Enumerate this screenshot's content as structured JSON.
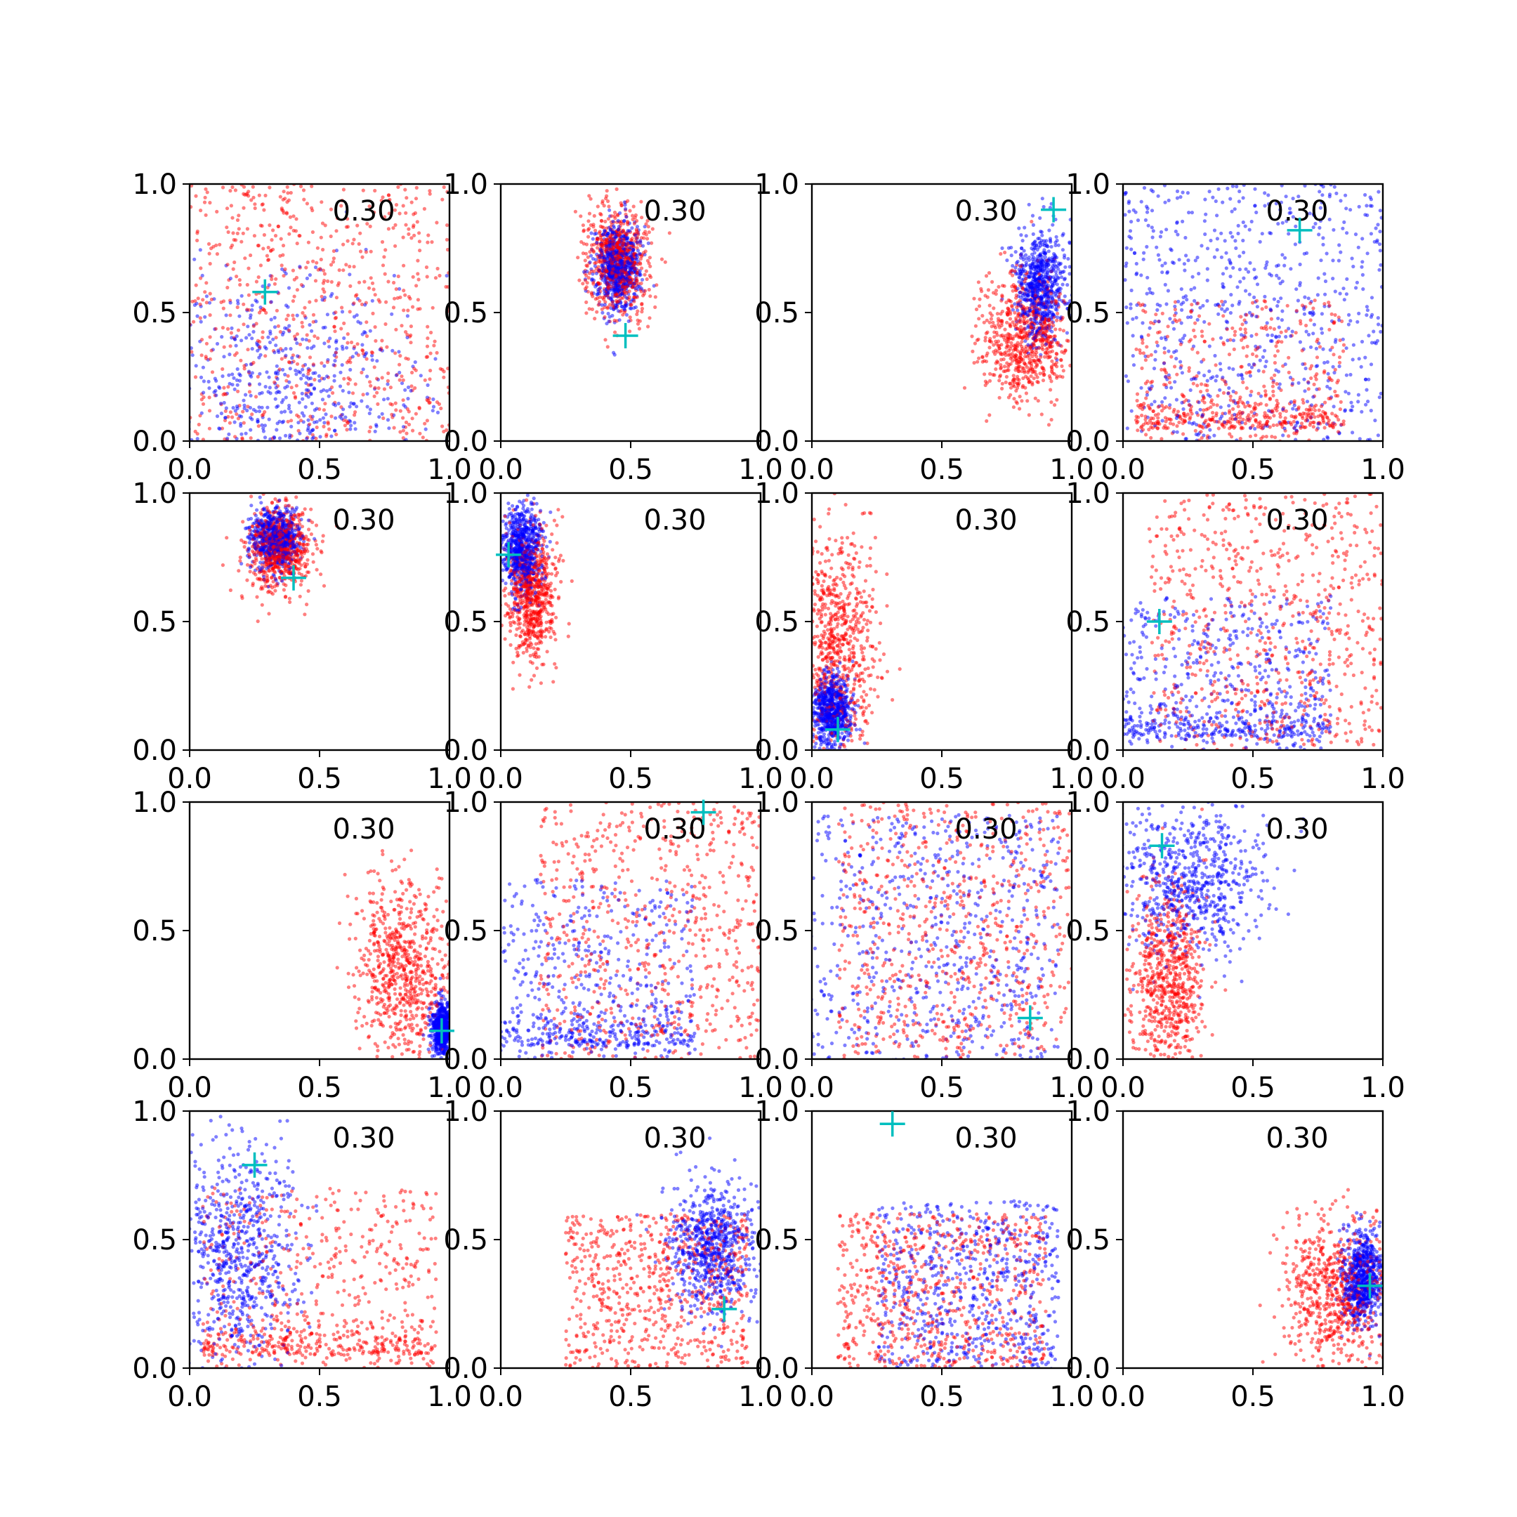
{
  "figure": {
    "background": "#ffffff",
    "rows": 4,
    "cols": 4,
    "marker_colors": {
      "series_a": "#0000ff",
      "series_b": "#ff0000",
      "center_marker": "#00bfbf"
    },
    "center_marker_shape": "plus"
  },
  "chart_data": [
    {
      "type": "scatter",
      "annotation": "0.30",
      "xlim": [
        0,
        1
      ],
      "ylim": [
        0,
        1
      ],
      "xticks": [
        "0.0",
        "0.5",
        "1.0"
      ],
      "yticks": [
        "0.0",
        "0.5",
        "1.0"
      ],
      "series": [
        {
          "color": "#0000ff",
          "distribution": "spread with dense band near y=0",
          "center": [
            0.4,
            0.15
          ],
          "spread": [
            0.45,
            0.4
          ]
        },
        {
          "color": "#ff0000",
          "distribution": "broad uniform",
          "center": [
            0.5,
            0.5
          ],
          "spread": [
            0.5,
            0.5
          ]
        }
      ],
      "marker": {
        "x": 0.29,
        "y": 0.58
      }
    },
    {
      "type": "scatter",
      "annotation": "0.30",
      "xlim": [
        0,
        1
      ],
      "ylim": [
        0,
        1
      ],
      "xticks": [
        "0.0",
        "0.5",
        "1.0"
      ],
      "yticks": [
        "0.0",
        "0.5",
        "1.0"
      ],
      "series": [
        {
          "color": "#0000ff",
          "distribution": "elongated cluster",
          "center": [
            0.45,
            0.68
          ],
          "spread": [
            0.07,
            0.14
          ]
        },
        {
          "color": "#ff0000",
          "distribution": "elongated cluster",
          "center": [
            0.45,
            0.7
          ],
          "spread": [
            0.1,
            0.18
          ]
        }
      ],
      "marker": {
        "x": 0.48,
        "y": 0.41
      }
    },
    {
      "type": "scatter",
      "annotation": "0.30",
      "xlim": [
        0,
        1
      ],
      "ylim": [
        0,
        1
      ],
      "xticks": [
        "0.0",
        "0.5",
        "1.0"
      ],
      "yticks": [
        "0.0",
        "0.5",
        "1.0"
      ],
      "series": [
        {
          "color": "#0000ff",
          "distribution": "cluster at right edge",
          "center": [
            0.88,
            0.6
          ],
          "spread": [
            0.08,
            0.18
          ]
        },
        {
          "color": "#ff0000",
          "distribution": "diffuse cluster",
          "center": [
            0.82,
            0.4
          ],
          "spread": [
            0.14,
            0.2
          ]
        }
      ],
      "marker": {
        "x": 0.93,
        "y": 0.9
      }
    },
    {
      "type": "scatter",
      "annotation": "0.30",
      "xlim": [
        0,
        1
      ],
      "ylim": [
        0,
        1
      ],
      "xticks": [
        "0.0",
        "0.5",
        "1.0"
      ],
      "yticks": [
        "0.0",
        "0.5",
        "1.0"
      ],
      "series": [
        {
          "color": "#0000ff",
          "distribution": "broad uniform",
          "center": [
            0.5,
            0.5
          ],
          "spread": [
            0.5,
            0.5
          ]
        },
        {
          "color": "#ff0000",
          "distribution": "broad with dense band near y=0.1",
          "center": [
            0.45,
            0.2
          ],
          "spread": [
            0.4,
            0.35
          ]
        }
      ],
      "marker": {
        "x": 0.68,
        "y": 0.82
      }
    },
    {
      "type": "scatter",
      "annotation": "0.30",
      "xlim": [
        0,
        1
      ],
      "ylim": [
        0,
        1
      ],
      "xticks": [
        "0.0",
        "0.5",
        "1.0"
      ],
      "yticks": [
        "0.0",
        "0.5",
        "1.0"
      ],
      "series": [
        {
          "color": "#0000ff",
          "distribution": "elongated cluster",
          "center": [
            0.33,
            0.82
          ],
          "spread": [
            0.08,
            0.1
          ]
        },
        {
          "color": "#ff0000",
          "distribution": "elongated cluster",
          "center": [
            0.35,
            0.78
          ],
          "spread": [
            0.1,
            0.14
          ]
        }
      ],
      "marker": {
        "x": 0.4,
        "y": 0.67
      }
    },
    {
      "type": "scatter",
      "annotation": "0.30",
      "xlim": [
        0,
        1
      ],
      "ylim": [
        0,
        1
      ],
      "xticks": [
        "0.0",
        "0.5",
        "1.0"
      ],
      "yticks": [
        "0.0",
        "0.5",
        "1.0"
      ],
      "series": [
        {
          "color": "#0000ff",
          "distribution": "cluster at left edge",
          "center": [
            0.08,
            0.78
          ],
          "spread": [
            0.06,
            0.14
          ]
        },
        {
          "color": "#ff0000",
          "distribution": "elongated cluster",
          "center": [
            0.12,
            0.6
          ],
          "spread": [
            0.08,
            0.2
          ]
        }
      ],
      "marker": {
        "x": 0.03,
        "y": 0.76
      }
    },
    {
      "type": "scatter",
      "annotation": "0.30",
      "xlim": [
        0,
        1
      ],
      "ylim": [
        0,
        1
      ],
      "xticks": [
        "0.0",
        "0.5",
        "1.0"
      ],
      "yticks": [
        "0.0",
        "0.5",
        "1.0"
      ],
      "series": [
        {
          "color": "#0000ff",
          "distribution": "cluster at lower left with sparse tail",
          "center": [
            0.08,
            0.15
          ],
          "spread": [
            0.06,
            0.12
          ]
        },
        {
          "color": "#ff0000",
          "distribution": "vertical band at left with sparse spread",
          "center": [
            0.1,
            0.4
          ],
          "spread": [
            0.12,
            0.35
          ]
        }
      ],
      "marker": {
        "x": 0.1,
        "y": 0.08
      }
    },
    {
      "type": "scatter",
      "annotation": "0.30",
      "xlim": [
        0,
        1
      ],
      "ylim": [
        0,
        1
      ],
      "xticks": [
        "0.0",
        "0.5",
        "1.0"
      ],
      "yticks": [
        "0.0",
        "0.5",
        "1.0"
      ],
      "series": [
        {
          "color": "#0000ff",
          "distribution": "broad with dense band near y=0.1",
          "center": [
            0.4,
            0.25
          ],
          "spread": [
            0.4,
            0.35
          ]
        },
        {
          "color": "#ff0000",
          "distribution": "broad uniform",
          "center": [
            0.55,
            0.5
          ],
          "spread": [
            0.45,
            0.5
          ]
        }
      ],
      "marker": {
        "x": 0.14,
        "y": 0.5
      }
    },
    {
      "type": "scatter",
      "annotation": "0.30",
      "xlim": [
        0,
        1
      ],
      "ylim": [
        0,
        1
      ],
      "xticks": [
        "0.0",
        "0.5",
        "1.0"
      ],
      "yticks": [
        "0.0",
        "0.5",
        "1.0"
      ],
      "series": [
        {
          "color": "#0000ff",
          "distribution": "tight cluster at right edge",
          "center": [
            0.97,
            0.12
          ],
          "spread": [
            0.03,
            0.08
          ]
        },
        {
          "color": "#ff0000",
          "distribution": "wedge toward right edge",
          "center": [
            0.82,
            0.35
          ],
          "spread": [
            0.15,
            0.3
          ]
        }
      ],
      "marker": {
        "x": 0.97,
        "y": 0.11
      }
    },
    {
      "type": "scatter",
      "annotation": "0.30",
      "xlim": [
        0,
        1
      ],
      "ylim": [
        0,
        1
      ],
      "xticks": [
        "0.0",
        "0.5",
        "1.0"
      ],
      "yticks": [
        "0.0",
        "0.5",
        "1.0"
      ],
      "series": [
        {
          "color": "#0000ff",
          "distribution": "broad with dense band near y=0",
          "center": [
            0.35,
            0.3
          ],
          "spread": [
            0.4,
            0.4
          ]
        },
        {
          "color": "#ff0000",
          "distribution": "broad uniform",
          "center": [
            0.6,
            0.5
          ],
          "spread": [
            0.45,
            0.5
          ]
        }
      ],
      "marker": {
        "x": 0.78,
        "y": 0.96
      }
    },
    {
      "type": "scatter",
      "annotation": "0.30",
      "xlim": [
        0,
        1
      ],
      "ylim": [
        0,
        1
      ],
      "xticks": [
        "0.0",
        "0.5",
        "1.0"
      ],
      "yticks": [
        "0.0",
        "0.5",
        "1.0"
      ],
      "series": [
        {
          "color": "#0000ff",
          "distribution": "broad uniform",
          "center": [
            0.45,
            0.45
          ],
          "spread": [
            0.5,
            0.5
          ]
        },
        {
          "color": "#ff0000",
          "distribution": "broad uniform",
          "center": [
            0.55,
            0.5
          ],
          "spread": [
            0.45,
            0.5
          ]
        }
      ],
      "marker": {
        "x": 0.84,
        "y": 0.16
      }
    },
    {
      "type": "scatter",
      "annotation": "0.30",
      "xlim": [
        0,
        1
      ],
      "ylim": [
        0,
        1
      ],
      "xticks": [
        "0.0",
        "0.5",
        "1.0"
      ],
      "yticks": [
        "0.0",
        "0.5",
        "1.0"
      ],
      "series": [
        {
          "color": "#0000ff",
          "distribution": "band at left, sparse right",
          "center": [
            0.25,
            0.7
          ],
          "spread": [
            0.25,
            0.25
          ]
        },
        {
          "color": "#ff0000",
          "distribution": "vertical band at left",
          "center": [
            0.18,
            0.3
          ],
          "spread": [
            0.12,
            0.3
          ]
        }
      ],
      "marker": {
        "x": 0.15,
        "y": 0.83
      }
    },
    {
      "type": "scatter",
      "annotation": "0.30",
      "xlim": [
        0,
        1
      ],
      "ylim": [
        0,
        1
      ],
      "xticks": [
        "0.0",
        "0.5",
        "1.0"
      ],
      "yticks": [
        "0.0",
        "0.5",
        "1.0"
      ],
      "series": [
        {
          "color": "#0000ff",
          "distribution": "band at left with cluster near bottom",
          "center": [
            0.18,
            0.45
          ],
          "spread": [
            0.2,
            0.4
          ]
        },
        {
          "color": "#ff0000",
          "distribution": "broad with dense band near y=0.1",
          "center": [
            0.5,
            0.35
          ],
          "spread": [
            0.45,
            0.35
          ]
        }
      ],
      "marker": {
        "x": 0.25,
        "y": 0.79
      }
    },
    {
      "type": "scatter",
      "annotation": "0.30",
      "xlim": [
        0,
        1
      ],
      "ylim": [
        0,
        1
      ],
      "xticks": [
        "0.0",
        "0.5",
        "1.0"
      ],
      "yticks": [
        "0.0",
        "0.5",
        "1.0"
      ],
      "series": [
        {
          "color": "#0000ff",
          "distribution": "cluster at right",
          "center": [
            0.82,
            0.48
          ],
          "spread": [
            0.14,
            0.22
          ]
        },
        {
          "color": "#ff0000",
          "distribution": "broad with emphasis lower right",
          "center": [
            0.6,
            0.3
          ],
          "spread": [
            0.35,
            0.3
          ]
        }
      ],
      "marker": {
        "x": 0.86,
        "y": 0.23
      }
    },
    {
      "type": "scatter",
      "annotation": "0.30",
      "xlim": [
        0,
        1
      ],
      "ylim": [
        0,
        1
      ],
      "xticks": [
        "0.0",
        "0.5",
        "1.0"
      ],
      "yticks": [
        "0.0",
        "0.5",
        "1.0"
      ],
      "series": [
        {
          "color": "#0000ff",
          "distribution": "broad with tight cluster near bottom",
          "center": [
            0.6,
            0.3
          ],
          "spread": [
            0.35,
            0.35
          ]
        },
        {
          "color": "#ff0000",
          "distribution": "broad lower half",
          "center": [
            0.5,
            0.3
          ],
          "spread": [
            0.4,
            0.3
          ]
        }
      ],
      "marker": {
        "x": 0.31,
        "y": 0.95
      }
    },
    {
      "type": "scatter",
      "annotation": "0.30",
      "xlim": [
        0,
        1
      ],
      "ylim": [
        0,
        1
      ],
      "xticks": [
        "0.0",
        "0.5",
        "1.0"
      ],
      "yticks": [
        "0.0",
        "0.5",
        "1.0"
      ],
      "series": [
        {
          "color": "#0000ff",
          "distribution": "cluster at right edge",
          "center": [
            0.92,
            0.35
          ],
          "spread": [
            0.06,
            0.15
          ]
        },
        {
          "color": "#ff0000",
          "distribution": "cluster at lower right with sparse spread",
          "center": [
            0.82,
            0.3
          ],
          "spread": [
            0.18,
            0.25
          ]
        }
      ],
      "marker": {
        "x": 0.95,
        "y": 0.32
      }
    }
  ]
}
